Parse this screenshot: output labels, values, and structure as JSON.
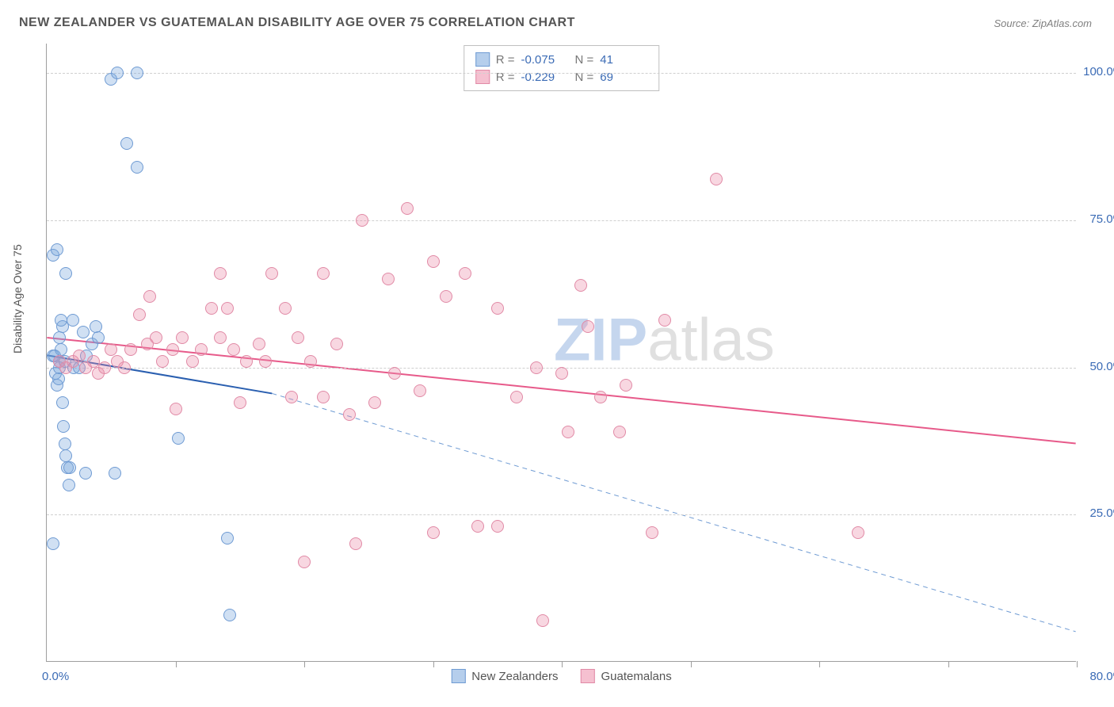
{
  "title": "NEW ZEALANDER VS GUATEMALAN DISABILITY AGE OVER 75 CORRELATION CHART",
  "source": "Source: ZipAtlas.com",
  "watermark_bold": "ZIP",
  "watermark_light": "atlas",
  "yaxis_label": "Disability Age Over 75",
  "chart": {
    "type": "scatter",
    "xlim": [
      0,
      80
    ],
    "ylim": [
      0,
      105
    ],
    "ytick_labels": [
      "25.0%",
      "50.0%",
      "75.0%",
      "100.0%"
    ],
    "ytick_values": [
      25,
      50,
      75,
      100
    ],
    "x_origin_label": "0.0%",
    "x_end_label": "80.0%",
    "xtick_values": [
      10,
      20,
      30,
      40,
      50,
      60,
      70,
      80
    ],
    "grid_color": "#d0d0d0",
    "axis_color": "#9e9e9e",
    "background_color": "#ffffff",
    "marker_radius": 8,
    "series": [
      {
        "name": "New Zealanders",
        "fill": "rgba(120,165,220,0.35)",
        "stroke": "#6f9bd3",
        "R": "-0.075",
        "N": "41",
        "trend": {
          "x1": 0,
          "y1": 52,
          "x2": 17.5,
          "y2": 45.5,
          "color": "#2a5fb0",
          "width": 2,
          "dash": "none"
        },
        "trend_ext": {
          "x1": 17.5,
          "y1": 45.5,
          "x2": 80,
          "y2": 5,
          "color": "#6f9bd3",
          "width": 1,
          "dash": "6,5"
        },
        "points": [
          [
            0.5,
            52
          ],
          [
            0.7,
            49
          ],
          [
            0.8,
            47
          ],
          [
            0.9,
            48
          ],
          [
            1.0,
            50
          ],
          [
            1.0,
            51
          ],
          [
            1.1,
            53
          ],
          [
            1.2,
            44
          ],
          [
            1.3,
            40
          ],
          [
            1.4,
            37
          ],
          [
            1.5,
            35
          ],
          [
            1.6,
            33
          ],
          [
            1.7,
            30
          ],
          [
            1.0,
            55
          ],
          [
            1.2,
            57
          ],
          [
            1.1,
            58
          ],
          [
            0.6,
            52
          ],
          [
            1.4,
            51
          ],
          [
            2.1,
            50
          ],
          [
            2.5,
            50
          ],
          [
            3.1,
            52
          ],
          [
            3.5,
            54
          ],
          [
            2.8,
            56
          ],
          [
            2.0,
            58
          ],
          [
            3.8,
            57
          ],
          [
            4.0,
            55
          ],
          [
            0.5,
            69
          ],
          [
            0.8,
            70
          ],
          [
            1.5,
            66
          ],
          [
            5.0,
            99
          ],
          [
            5.5,
            100
          ],
          [
            7.0,
            100
          ],
          [
            6.2,
            88
          ],
          [
            7.0,
            84
          ],
          [
            0.5,
            20
          ],
          [
            1.8,
            33
          ],
          [
            3.0,
            32
          ],
          [
            5.3,
            32
          ],
          [
            10.2,
            38
          ],
          [
            14.0,
            21
          ],
          [
            14.2,
            8
          ]
        ]
      },
      {
        "name": "Guatemalans",
        "fill": "rgba(236,140,170,0.35)",
        "stroke": "#e18aa6",
        "R": "-0.229",
        "N": "69",
        "trend": {
          "x1": 0,
          "y1": 55,
          "x2": 80,
          "y2": 37,
          "color": "#e75a8a",
          "width": 2,
          "dash": "none"
        },
        "points": [
          [
            1.0,
            51
          ],
          [
            1.5,
            50
          ],
          [
            2.0,
            51
          ],
          [
            2.5,
            52
          ],
          [
            3.0,
            50
          ],
          [
            3.6,
            51
          ],
          [
            4.0,
            49
          ],
          [
            4.5,
            50
          ],
          [
            5.0,
            53
          ],
          [
            5.5,
            51
          ],
          [
            6.0,
            50
          ],
          [
            6.5,
            53
          ],
          [
            7.2,
            59
          ],
          [
            7.8,
            54
          ],
          [
            8.5,
            55
          ],
          [
            9.0,
            51
          ],
          [
            9.8,
            53
          ],
          [
            10.5,
            55
          ],
          [
            11.3,
            51
          ],
          [
            12.0,
            53
          ],
          [
            12.8,
            60
          ],
          [
            13.5,
            55
          ],
          [
            14.5,
            53
          ],
          [
            15.5,
            51
          ],
          [
            16.5,
            54
          ],
          [
            17.5,
            66
          ],
          [
            18.5,
            60
          ],
          [
            19.5,
            55
          ],
          [
            20.5,
            51
          ],
          [
            21.5,
            45
          ],
          [
            22.5,
            54
          ],
          [
            23.5,
            42
          ],
          [
            24.5,
            75
          ],
          [
            25.5,
            44
          ],
          [
            26.5,
            65
          ],
          [
            27.0,
            49
          ],
          [
            28.0,
            77
          ],
          [
            30.0,
            68
          ],
          [
            31.0,
            62
          ],
          [
            32.5,
            66
          ],
          [
            35.0,
            60
          ],
          [
            36.5,
            45
          ],
          [
            38.0,
            50
          ],
          [
            40.0,
            49
          ],
          [
            41.5,
            64
          ],
          [
            43.0,
            45
          ],
          [
            45.0,
            47
          ],
          [
            47.0,
            22
          ],
          [
            48.0,
            58
          ],
          [
            52.0,
            82
          ],
          [
            38.5,
            7
          ],
          [
            33.5,
            23
          ],
          [
            35.0,
            23
          ],
          [
            29.0,
            46
          ],
          [
            19.0,
            45
          ],
          [
            20.0,
            17
          ],
          [
            24.0,
            20
          ],
          [
            13.5,
            66
          ],
          [
            10.0,
            43
          ],
          [
            14.0,
            60
          ],
          [
            30.0,
            22
          ],
          [
            63.0,
            22
          ],
          [
            40.5,
            39
          ],
          [
            42.0,
            57
          ],
          [
            15.0,
            44
          ],
          [
            21.5,
            66
          ],
          [
            17.0,
            51
          ],
          [
            44.5,
            39
          ],
          [
            8.0,
            62
          ]
        ]
      }
    ],
    "stats_legend_swatch_blue": {
      "fill": "rgba(120,165,220,0.55)",
      "border": "#6f9bd3"
    },
    "stats_legend_swatch_pink": {
      "fill": "rgba(236,140,170,0.55)",
      "border": "#e18aa6"
    }
  }
}
